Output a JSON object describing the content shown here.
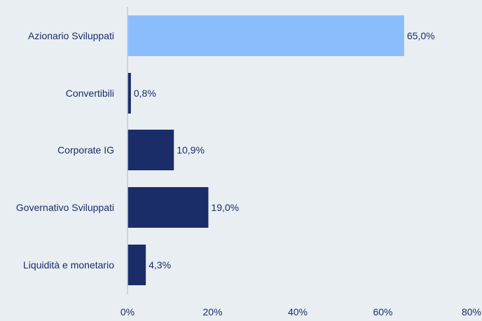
{
  "chart_data": {
    "type": "bar",
    "orientation": "horizontal",
    "categories": [
      "Azionario Sviluppati",
      "Convertibili",
      "Corporate IG",
      "Governativo Sviluppati",
      "Liquidità e monetario"
    ],
    "values": [
      65.0,
      0.8,
      10.9,
      19.0,
      4.3
    ],
    "data_labels": [
      "65,0%",
      "0,8%",
      "10,9%",
      "19,0%",
      "4,3%"
    ],
    "bar_colors": [
      "#8bbdfc",
      "#1b2d68",
      "#1b2d68",
      "#1b2d68",
      "#1b2d68"
    ],
    "title": "",
    "xlabel": "",
    "ylabel": "",
    "xlim": [
      0,
      80
    ],
    "xticks": [
      0,
      20,
      40,
      60,
      80
    ],
    "xtick_labels": [
      "0%",
      "20%",
      "40%",
      "60%",
      "80%"
    ],
    "grid": false,
    "legend": "none",
    "text_color": "#1b2d68",
    "axis_color": "#c7ccd2",
    "background": "#e9eef2"
  }
}
